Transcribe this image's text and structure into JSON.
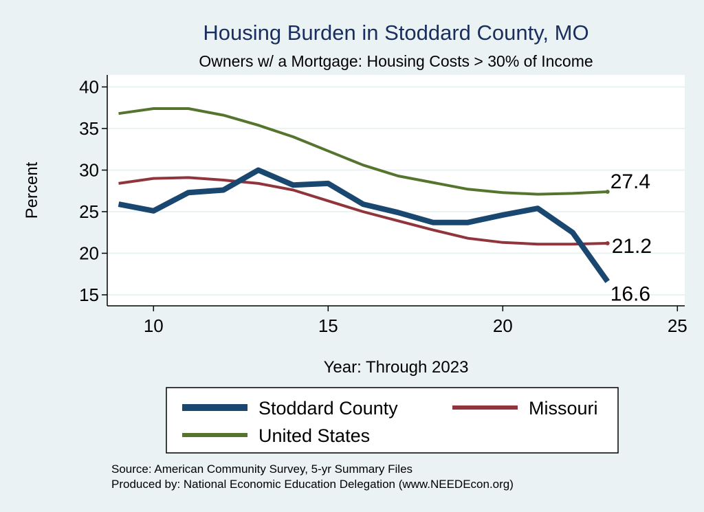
{
  "chart_data": {
    "type": "line",
    "title": "Housing Burden in Stoddard County, MO",
    "subtitle": "Owners w/ a Mortgage: Housing Costs > 30% of Income",
    "xlabel": "Year: Through 2023",
    "ylabel": "Percent",
    "xlim": [
      9,
      25
    ],
    "ylim": [
      15,
      40
    ],
    "xticks": [
      10,
      15,
      20,
      25
    ],
    "yticks": [
      15,
      20,
      25,
      30,
      35,
      40
    ],
    "x": [
      9,
      10,
      11,
      12,
      13,
      14,
      15,
      16,
      17,
      18,
      19,
      20,
      21,
      22,
      23
    ],
    "series": [
      {
        "name": "Stoddard County",
        "color": "#1a476f",
        "values": [
          25.9,
          25.1,
          27.3,
          27.6,
          30.0,
          28.2,
          28.4,
          25.9,
          24.9,
          23.7,
          23.7,
          24.6,
          25.4,
          22.5,
          16.6
        ],
        "end_label": "16.6"
      },
      {
        "name": "Missouri",
        "color": "#90353b",
        "values": [
          28.4,
          29.0,
          29.1,
          28.8,
          28.4,
          27.6,
          26.3,
          25.0,
          23.9,
          22.8,
          21.8,
          21.3,
          21.1,
          21.1,
          21.2
        ],
        "end_label": "21.2"
      },
      {
        "name": "United States",
        "color": "#55752f",
        "values": [
          36.8,
          37.4,
          37.4,
          36.6,
          35.4,
          34.0,
          32.3,
          30.6,
          29.3,
          28.5,
          27.7,
          27.3,
          27.1,
          27.2,
          27.4
        ],
        "end_label": "27.4"
      }
    ],
    "legend_position": "bottom",
    "grid": true
  },
  "notes": {
    "source": "Source: American Community Survey, 5-yr Summary Files",
    "produced_by": "Produced by: National Economic Education Delegation (www.NEEDEcon.org)"
  }
}
